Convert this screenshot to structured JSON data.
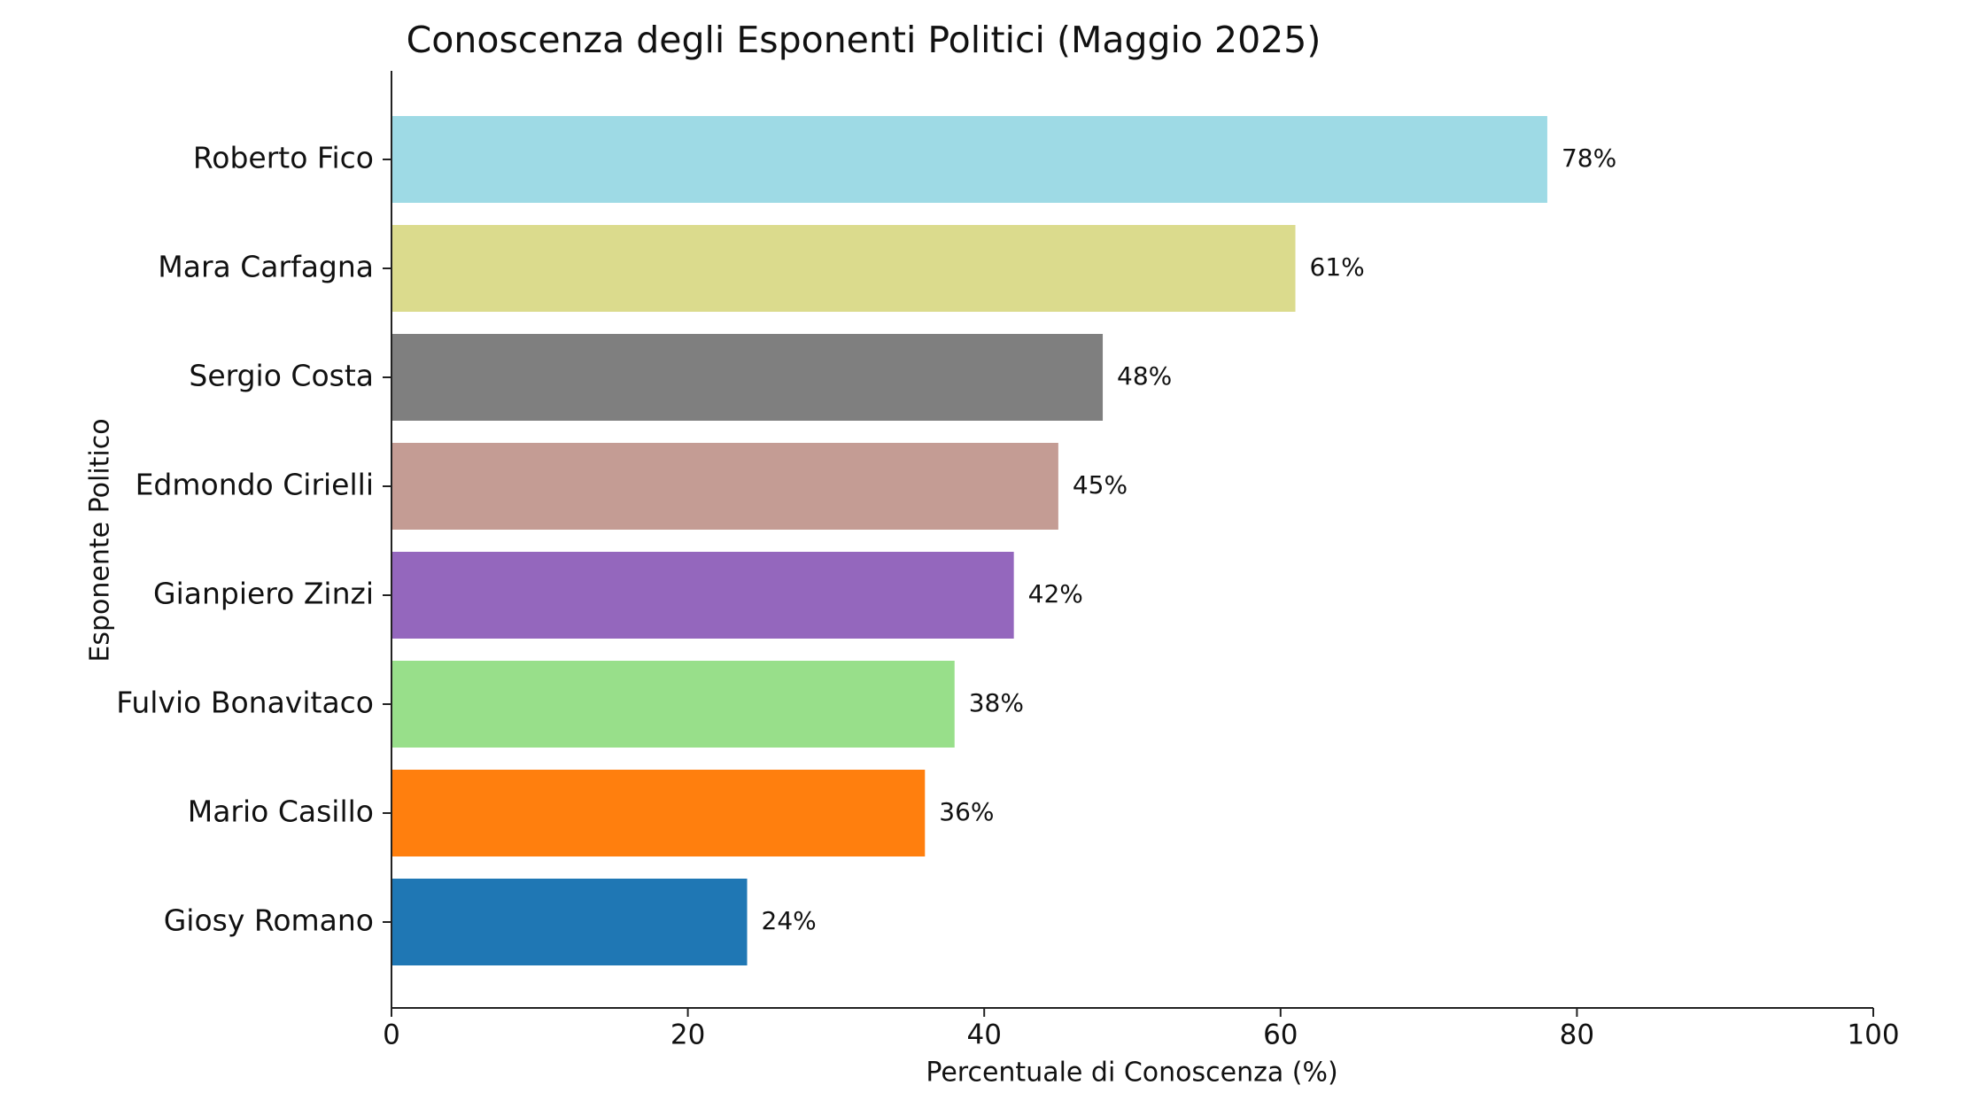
{
  "chart_data": {
    "type": "bar",
    "orientation": "horizontal",
    "title": "Conoscenza degli Esponenti Politici (Maggio 2025)",
    "xlabel": "Percentuale di Conoscenza (%)",
    "ylabel": "Esponente Politico",
    "xlim": [
      0,
      100
    ],
    "xticks": [
      0,
      20,
      40,
      60,
      80,
      100
    ],
    "grid": false,
    "categories": [
      "Roberto Fico",
      "Mara Carfagna",
      "Sergio Costa",
      "Edmondo Cirielli",
      "Gianpiero Zinzi",
      "Fulvio Bonavitaco",
      "Mario Casillo",
      "Giosy Romano"
    ],
    "values": [
      78,
      61,
      48,
      45,
      42,
      38,
      36,
      24
    ],
    "value_labels": [
      "78%",
      "61%",
      "48%",
      "45%",
      "42%",
      "38%",
      "36%",
      "24%"
    ],
    "colors": [
      "#9edae5",
      "#dbdb8d",
      "#7f7f7f",
      "#c49c94",
      "#9467bd",
      "#98df8a",
      "#ff7f0e",
      "#1f77b4"
    ]
  }
}
